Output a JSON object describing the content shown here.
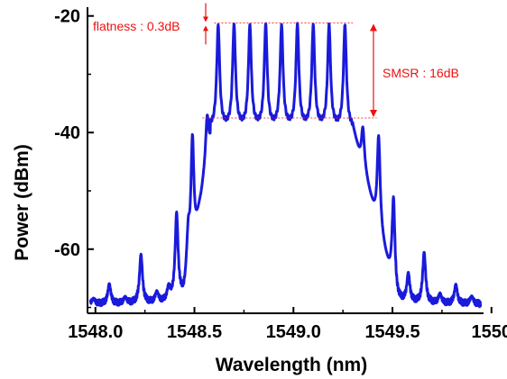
{
  "chart_data": {
    "type": "line",
    "xlabel": "Wavelength (nm)",
    "ylabel": "Power (dBm)",
    "xlim": [
      1547.96,
      1549.96
    ],
    "ylim": [
      -71,
      -18.5
    ],
    "x_ticks": [
      1548.0,
      1548.5,
      1549.0,
      1549.5,
      1550.0
    ],
    "x_tick_labels": [
      "1548.0",
      "1548.5",
      "1549.0",
      "1549.5",
      "1550"
    ],
    "y_ticks": [
      -60,
      -40,
      -20
    ],
    "y_tick_labels": [
      "-60",
      "-40",
      "-20"
    ],
    "grid": false,
    "legend": "none",
    "noise_floor_dbm": -69.5,
    "series": [
      {
        "color": "#1a1adb",
        "peaks": [
          {
            "x": 1547.99,
            "y": -68.5
          },
          {
            "x": 1548.07,
            "y": -66.0
          },
          {
            "x": 1548.15,
            "y": -68.3
          },
          {
            "x": 1548.23,
            "y": -61.0
          },
          {
            "x": 1548.31,
            "y": -67.5
          },
          {
            "x": 1548.37,
            "y": -67.0
          },
          {
            "x": 1548.41,
            "y": -54.0
          },
          {
            "x": 1548.47,
            "y": -57.5
          },
          {
            "x": 1548.49,
            "y": -40.5
          },
          {
            "x": 1548.54,
            "y": -52.0
          },
          {
            "x": 1548.565,
            "y": -37.5
          },
          {
            "x": 1548.62,
            "y": -21.5
          },
          {
            "x": 1548.7,
            "y": -21.3
          },
          {
            "x": 1548.78,
            "y": -21.4
          },
          {
            "x": 1548.86,
            "y": -21.3
          },
          {
            "x": 1548.94,
            "y": -21.4
          },
          {
            "x": 1549.02,
            "y": -21.2
          },
          {
            "x": 1549.1,
            "y": -21.4
          },
          {
            "x": 1549.18,
            "y": -21.3
          },
          {
            "x": 1549.26,
            "y": -21.5
          },
          {
            "x": 1549.35,
            "y": -39.0
          },
          {
            "x": 1549.43,
            "y": -40.5
          },
          {
            "x": 1549.505,
            "y": -51.0
          },
          {
            "x": 1549.58,
            "y": -64.0
          },
          {
            "x": 1549.66,
            "y": -60.5
          },
          {
            "x": 1549.74,
            "y": -67.5
          },
          {
            "x": 1549.82,
            "y": -66.0
          },
          {
            "x": 1549.9,
            "y": -68.0
          }
        ]
      }
    ],
    "annotations": {
      "color": "#ee1111",
      "flatness": {
        "text": "flatness : 0.3dB",
        "top_dbm": -21.2,
        "bottom_dbm": -21.5
      },
      "smsr": {
        "text": "SMSR : 16dB",
        "top_dbm": -21.2,
        "bottom_dbm": -37.5
      }
    }
  }
}
